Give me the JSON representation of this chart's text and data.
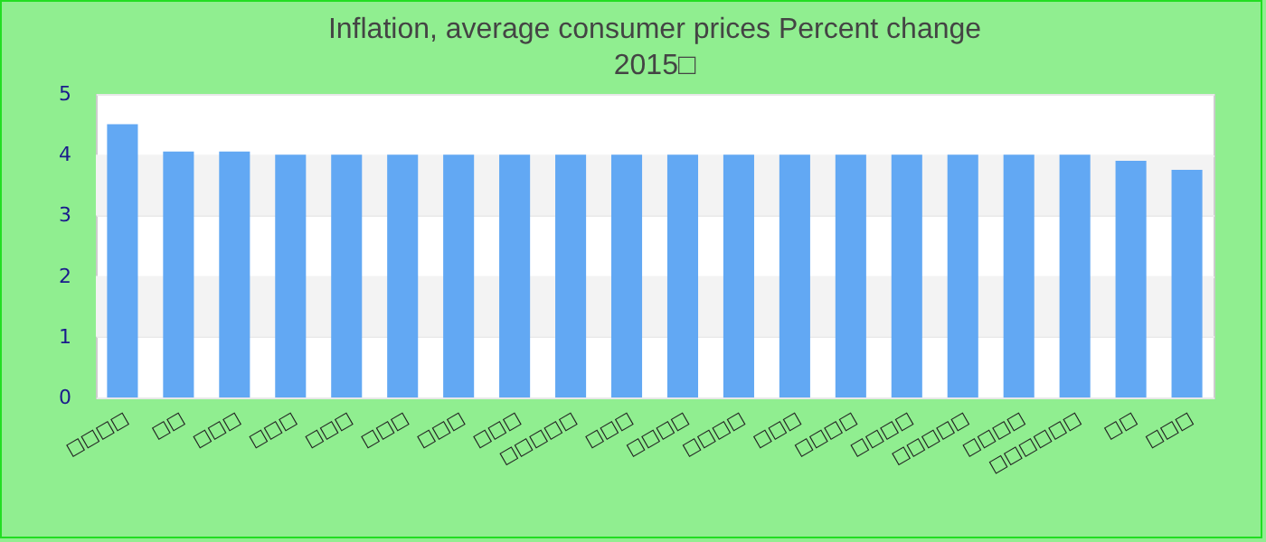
{
  "chart_data": {
    "type": "bar",
    "title": "Inflation, average consumer prices  Percent change",
    "subtitle": "2015□",
    "categories": [
      "□□□□",
      "□□",
      "□□□",
      "□□□",
      "□□□",
      "□□□",
      "□□□",
      "□□□",
      "□□□□□",
      "□□□",
      "□□□□",
      "□□□□",
      "□□□",
      "□□□□",
      "□□□□",
      "□□□□□",
      "□□□□",
      "□□□□□□",
      "□□",
      "□□□"
    ],
    "values": [
      4.5,
      4.05,
      4.05,
      4.0,
      4.0,
      4.0,
      4.0,
      4.0,
      4.0,
      4.0,
      4.0,
      4.0,
      4.0,
      4.0,
      4.0,
      4.0,
      4.0,
      4.0,
      3.9,
      3.75
    ],
    "color": "#62a8f3",
    "ylim": [
      0,
      5
    ],
    "yticks": [
      0,
      1,
      2,
      3,
      4,
      5
    ],
    "grid": "y"
  }
}
